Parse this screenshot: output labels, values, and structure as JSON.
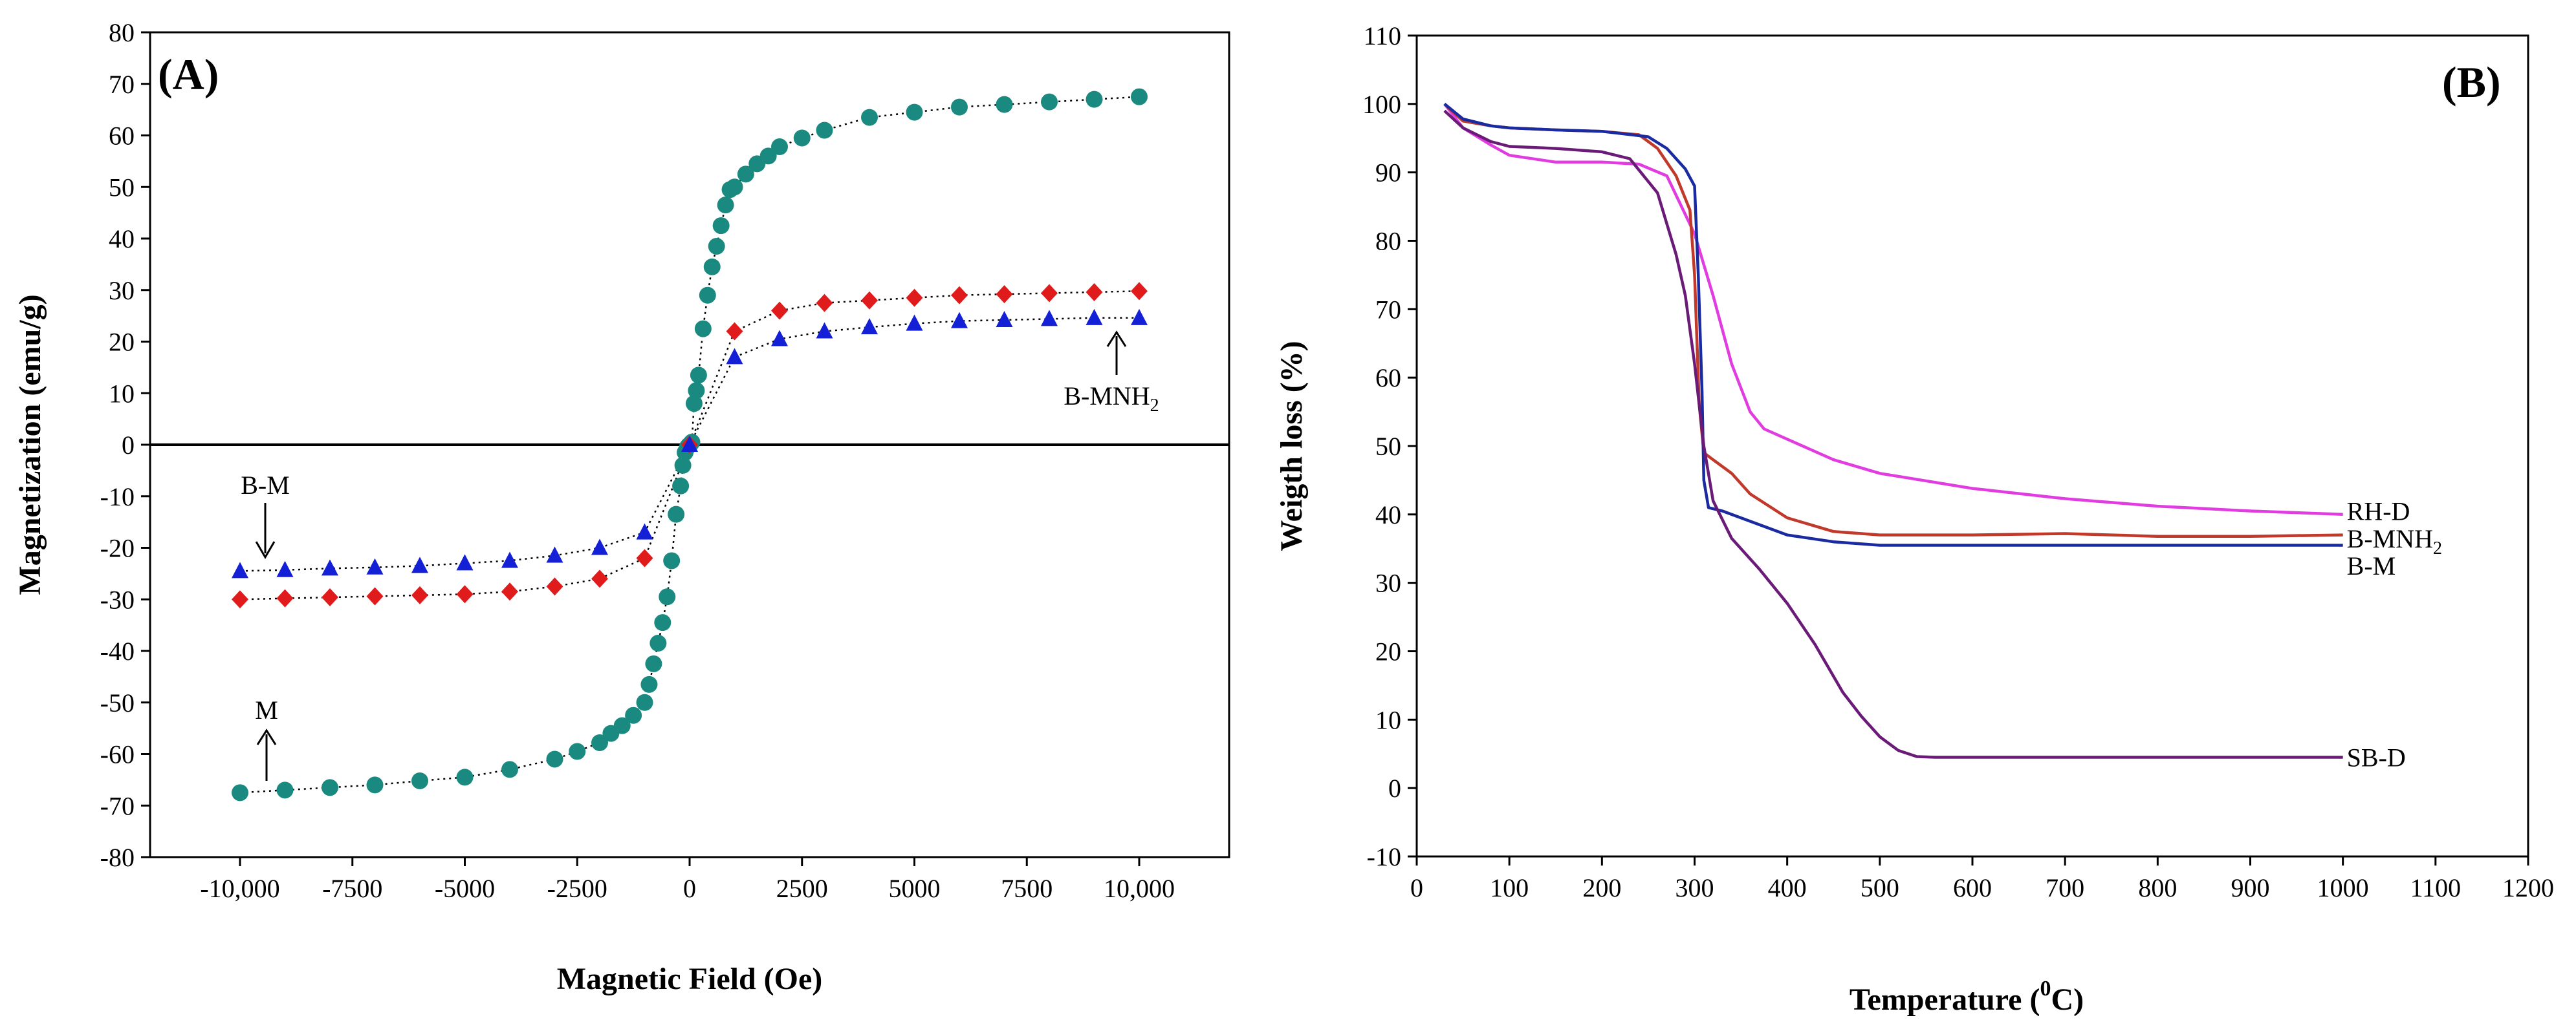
{
  "figure": "two-panel scientific figure",
  "chart_data": [
    {
      "id": "A",
      "type": "scatter",
      "panel_label": "(A)",
      "title": "",
      "xlabel": "Magnetic Field (Oe)",
      "ylabel": "Magnetization (emu/g)",
      "xlim": [
        -12000,
        12000
      ],
      "ylim": [
        -80,
        80
      ],
      "x_ticks": [
        -10000,
        -7500,
        -5000,
        -2500,
        0,
        2500,
        5000,
        7500,
        10000
      ],
      "x_tick_labels": [
        "-10,000",
        "-7500",
        "-5000",
        "-2500",
        "0",
        "2500",
        "5000",
        "7500",
        "10,000"
      ],
      "y_ticks": [
        -80,
        -70,
        -60,
        -50,
        -40,
        -30,
        -20,
        -10,
        0,
        10,
        20,
        30,
        40,
        50,
        60,
        70,
        80
      ],
      "y_tick_labels": [
        "-80",
        "-70",
        "-60",
        "-50",
        "-40",
        "-30",
        "-20",
        "-10",
        "0",
        "10",
        "20",
        "30",
        "40",
        "50",
        "60",
        "70",
        "80"
      ],
      "grid": false,
      "line_style": "dotted black connecting line",
      "series": [
        {
          "name": "M",
          "marker": "circle",
          "color": "#1a8a80",
          "x": [
            -10000,
            -9000,
            -8000,
            -7000,
            -6000,
            -5000,
            -4000,
            -3000,
            -2500,
            -2000,
            -1750,
            -1500,
            -1250,
            -1000,
            -900,
            -800,
            -700,
            -600,
            -500,
            -400,
            -300,
            -200,
            -150,
            -100,
            -50,
            -25,
            0,
            25,
            50,
            100,
            150,
            200,
            300,
            400,
            500,
            600,
            700,
            800,
            900,
            1000,
            1250,
            1500,
            1750,
            2000,
            2500,
            3000,
            4000,
            5000,
            6000,
            7000,
            8000,
            9000,
            10000
          ],
          "y": [
            -67.5,
            -67,
            -66.5,
            -66,
            -65.2,
            -64.5,
            -63,
            -61,
            -59.5,
            -57.8,
            -56,
            -54.5,
            -52.5,
            -50,
            -46.5,
            -42.5,
            -38.5,
            -34.5,
            -29.5,
            -22.5,
            -13.5,
            -8,
            -4,
            -1.5,
            -0.5,
            -0.2,
            0,
            0.2,
            0.5,
            8,
            10.5,
            13.5,
            22.5,
            29,
            34.5,
            38.5,
            42.5,
            46.5,
            49.5,
            50,
            52.5,
            54.5,
            56,
            57.8,
            59.5,
            61,
            63.5,
            64.5,
            65.5,
            66,
            66.5,
            67,
            67.5
          ]
        },
        {
          "name": "B-MNH2",
          "marker": "diamond",
          "color": "#e01b1b",
          "x": [
            -10000,
            -9000,
            -8000,
            -7000,
            -6000,
            -5000,
            -4000,
            -3000,
            -2000,
            -1000,
            0,
            1000,
            2000,
            3000,
            4000,
            5000,
            6000,
            7000,
            8000,
            9000,
            10000
          ],
          "y": [
            -30,
            -29.8,
            -29.6,
            -29.4,
            -29.2,
            -29,
            -28.5,
            -27.5,
            -26,
            -22,
            0,
            22,
            26,
            27.5,
            28,
            28.5,
            29,
            29.2,
            29.4,
            29.6,
            29.8
          ]
        },
        {
          "name": "B-M",
          "marker": "triangle",
          "color": "#1420d6",
          "x": [
            -10000,
            -9000,
            -8000,
            -7000,
            -6000,
            -5000,
            -4000,
            -3000,
            -2000,
            -1000,
            0,
            1000,
            2000,
            3000,
            4000,
            5000,
            6000,
            7000,
            8000,
            9000,
            10000
          ],
          "y": [
            -24.5,
            -24.3,
            -24,
            -23.8,
            -23.5,
            -23,
            -22.5,
            -21.5,
            -20,
            -17,
            0,
            17,
            20.5,
            22,
            22.8,
            23.5,
            24,
            24.2,
            24.4,
            24.6,
            24.6
          ]
        }
      ],
      "annotations": [
        {
          "text": "B-M",
          "points_to_series": "B-M",
          "at": [
            -9500,
            -24
          ]
        },
        {
          "text": "M",
          "points_to_series": "M",
          "at": [
            -9200,
            -67
          ]
        },
        {
          "text": "B-MNH",
          "subscript": "2",
          "points_to_series": "B-MNH2",
          "at": [
            9400,
            24
          ]
        }
      ]
    },
    {
      "id": "B",
      "type": "line",
      "panel_label": "(B)",
      "title": "",
      "xlabel": "Temperature (",
      "xlabel_superscript": "0",
      "xlabel_suffix": "C)",
      "ylabel": "Weigth loss (%)",
      "xlim": [
        0,
        1200
      ],
      "ylim": [
        -10,
        110
      ],
      "x_ticks": [
        0,
        100,
        200,
        300,
        400,
        500,
        600,
        700,
        800,
        900,
        1000,
        1100,
        1200
      ],
      "x_tick_labels": [
        "0",
        "100",
        "200",
        "300",
        "400",
        "500",
        "600",
        "700",
        "800",
        "900",
        "1000",
        "1100",
        "1200"
      ],
      "y_ticks": [
        -10,
        0,
        10,
        20,
        30,
        40,
        50,
        60,
        70,
        80,
        90,
        100,
        110
      ],
      "y_tick_labels": [
        "-10",
        "0",
        "10",
        "20",
        "30",
        "40",
        "50",
        "60",
        "70",
        "80",
        "90",
        "100",
        "110"
      ],
      "grid": false,
      "series": [
        {
          "name": "RH-D",
          "label": "RH-D",
          "color": "#e03ce0",
          "x": [
            30,
            50,
            80,
            100,
            150,
            200,
            240,
            270,
            300,
            320,
            340,
            360,
            375,
            400,
            450,
            500,
            600,
            700,
            800,
            900,
            1000
          ],
          "y": [
            100,
            96.5,
            94,
            92.5,
            91.5,
            91.5,
            91.2,
            89.5,
            81,
            72,
            62,
            55,
            52.5,
            51,
            48,
            46,
            43.8,
            42.3,
            41.2,
            40.5,
            40
          ]
        },
        {
          "name": "B-MNH2",
          "label": "B-MNH",
          "label_subscript": "2",
          "color": "#c0392b",
          "x": [
            30,
            50,
            80,
            100,
            150,
            200,
            240,
            260,
            280,
            295,
            300,
            305,
            310,
            320,
            340,
            360,
            400,
            450,
            500,
            600,
            700,
            800,
            900,
            1000
          ],
          "y": [
            100,
            97.5,
            96.8,
            96.5,
            96.2,
            96,
            95.5,
            93.5,
            89.5,
            84.5,
            75,
            56,
            49,
            48,
            46,
            43,
            39.5,
            37.5,
            37,
            37,
            37.2,
            36.8,
            36.8,
            37
          ]
        },
        {
          "name": "B-M",
          "label": "B-M",
          "color": "#1a2aa0",
          "x": [
            30,
            50,
            80,
            100,
            150,
            200,
            250,
            270,
            290,
            300,
            304,
            308,
            310,
            315,
            330,
            350,
            400,
            450,
            500,
            600,
            700,
            800,
            900,
            1000
          ],
          "y": [
            100,
            97.8,
            96.8,
            96.5,
            96.2,
            96,
            95.2,
            93.5,
            90.5,
            88,
            75,
            58,
            45,
            41,
            40.5,
            39.5,
            37,
            36,
            35.5,
            35.5,
            35.5,
            35.5,
            35.5,
            35.5
          ]
        },
        {
          "name": "SB-D",
          "label": "SB-D",
          "color": "#6a1b78",
          "x": [
            30,
            50,
            80,
            100,
            150,
            200,
            230,
            260,
            280,
            290,
            300,
            310,
            320,
            340,
            370,
            400,
            430,
            460,
            480,
            500,
            520,
            540,
            560,
            600,
            700,
            800,
            900,
            1000
          ],
          "y": [
            99,
            96.5,
            94.5,
            93.8,
            93.5,
            93,
            92,
            87,
            78,
            72,
            62,
            50,
            42,
            36.5,
            32,
            27,
            21,
            14,
            10.5,
            7.5,
            5.5,
            4.6,
            4.5,
            4.5,
            4.5,
            4.5,
            4.5,
            4.5
          ]
        }
      ]
    }
  ]
}
